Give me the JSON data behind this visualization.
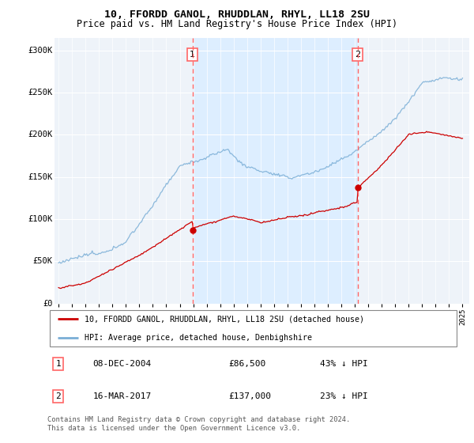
{
  "title_line1": "10, FFORDD GANOL, RHUDDLAN, RHYL, LL18 2SU",
  "title_line2": "Price paid vs. HM Land Registry's House Price Index (HPI)",
  "ylabel_ticks": [
    "£0",
    "£50K",
    "£100K",
    "£150K",
    "£200K",
    "£250K",
    "£300K"
  ],
  "ytick_vals": [
    0,
    50000,
    100000,
    150000,
    200000,
    250000,
    300000
  ],
  "ylim": [
    0,
    315000
  ],
  "xlim_start": 1994.7,
  "xlim_end": 2025.5,
  "transaction1": {
    "date_num": 2004.94,
    "price": 86500,
    "label": "1"
  },
  "transaction2": {
    "date_num": 2017.21,
    "price": 137000,
    "label": "2"
  },
  "legend_entry1": "10, FFORDD GANOL, RHUDDLAN, RHYL, LL18 2SU (detached house)",
  "legend_entry2": "HPI: Average price, detached house, Denbighshire",
  "red_color": "#cc0000",
  "blue_color": "#7aaed6",
  "fill_color": "#ddeeff",
  "background_color": "#f0f4f8",
  "grid_color": "#cccccc",
  "vline_color": "#ff6666",
  "footer": "Contains HM Land Registry data © Crown copyright and database right 2024.\nThis data is licensed under the Open Government Licence v3.0."
}
